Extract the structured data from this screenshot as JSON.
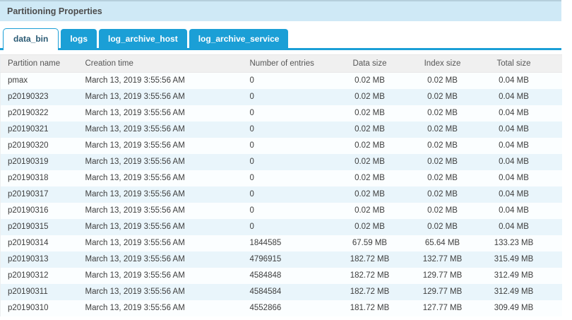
{
  "panel": {
    "title": "Partitioning Properties"
  },
  "tabs": [
    {
      "label": "data_bin",
      "active": true
    },
    {
      "label": "logs",
      "active": false
    },
    {
      "label": "log_archive_host",
      "active": false
    },
    {
      "label": "log_archive_service",
      "active": false
    }
  ],
  "table": {
    "columns": [
      {
        "label": "Partition name",
        "align": "left"
      },
      {
        "label": "Creation time",
        "align": "left"
      },
      {
        "label": "Number of entries",
        "align": "left"
      },
      {
        "label": "Data size",
        "align": "center"
      },
      {
        "label": "Index size",
        "align": "center"
      },
      {
        "label": "Total size",
        "align": "center"
      }
    ],
    "rows": [
      [
        "pmax",
        "March 13, 2019 3:55:56 AM",
        "0",
        "0.02 MB",
        "0.02 MB",
        "0.04 MB"
      ],
      [
        "p20190323",
        "March 13, 2019 3:55:56 AM",
        "0",
        "0.02 MB",
        "0.02 MB",
        "0.04 MB"
      ],
      [
        "p20190322",
        "March 13, 2019 3:55:56 AM",
        "0",
        "0.02 MB",
        "0.02 MB",
        "0.04 MB"
      ],
      [
        "p20190321",
        "March 13, 2019 3:55:56 AM",
        "0",
        "0.02 MB",
        "0.02 MB",
        "0.04 MB"
      ],
      [
        "p20190320",
        "March 13, 2019 3:55:56 AM",
        "0",
        "0.02 MB",
        "0.02 MB",
        "0.04 MB"
      ],
      [
        "p20190319",
        "March 13, 2019 3:55:56 AM",
        "0",
        "0.02 MB",
        "0.02 MB",
        "0.04 MB"
      ],
      [
        "p20190318",
        "March 13, 2019 3:55:56 AM",
        "0",
        "0.02 MB",
        "0.02 MB",
        "0.04 MB"
      ],
      [
        "p20190317",
        "March 13, 2019 3:55:56 AM",
        "0",
        "0.02 MB",
        "0.02 MB",
        "0.04 MB"
      ],
      [
        "p20190316",
        "March 13, 2019 3:55:56 AM",
        "0",
        "0.02 MB",
        "0.02 MB",
        "0.04 MB"
      ],
      [
        "p20190315",
        "March 13, 2019 3:55:56 AM",
        "0",
        "0.02 MB",
        "0.02 MB",
        "0.04 MB"
      ],
      [
        "p20190314",
        "March 13, 2019 3:55:56 AM",
        "1844585",
        "67.59 MB",
        "65.64 MB",
        "133.23 MB"
      ],
      [
        "p20190313",
        "March 13, 2019 3:55:56 AM",
        "4796915",
        "182.72 MB",
        "132.77 MB",
        "315.49 MB"
      ],
      [
        "p20190312",
        "March 13, 2019 3:55:56 AM",
        "4584848",
        "182.72 MB",
        "129.77 MB",
        "312.49 MB"
      ],
      [
        "p20190311",
        "March 13, 2019 3:55:56 AM",
        "4584584",
        "182.72 MB",
        "129.77 MB",
        "312.49 MB"
      ],
      [
        "p20190310",
        "March 13, 2019 3:55:56 AM",
        "4552866",
        "181.72 MB",
        "127.77 MB",
        "309.49 MB"
      ]
    ]
  },
  "colors": {
    "accent_blue": "#1b9fd6",
    "title_bar_bg": "#cfe9f6",
    "title_text": "#4c4c4c",
    "active_tab_text": "#2a5a74",
    "header_bg": "#f0f0f0",
    "row_alt_bg": "#e9f5fb",
    "body_text": "#3e3e3e"
  }
}
